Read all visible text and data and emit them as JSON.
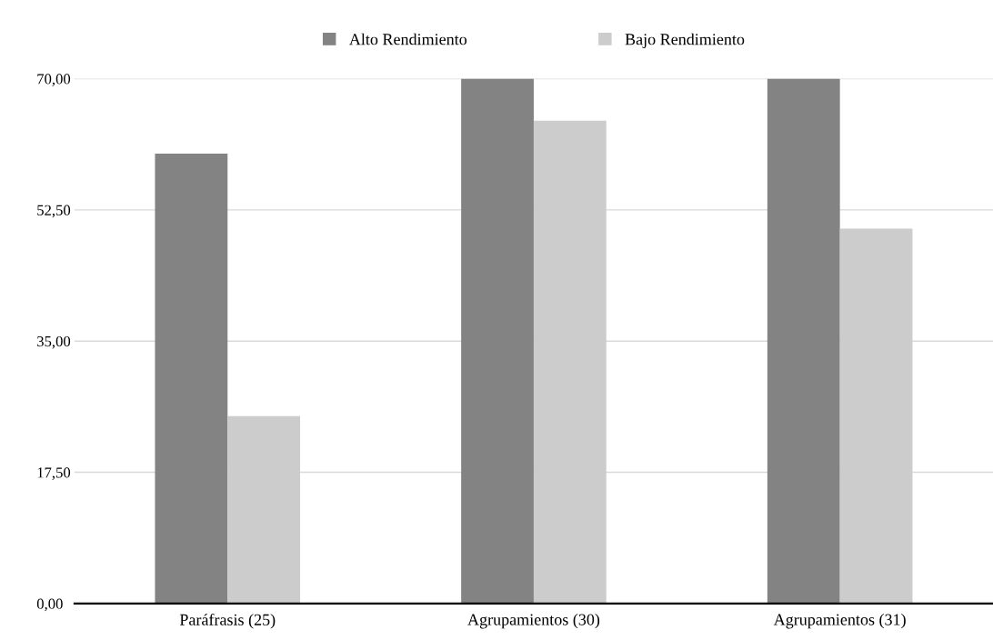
{
  "chart_data": {
    "type": "bar",
    "categories": [
      "Paráfrasis (25)",
      "Agrupamientos (30)",
      "Agrupamientos (31)"
    ],
    "series": [
      {
        "name": "Alto Rendimiento",
        "color": "#828382",
        "values": [
          60,
          70,
          70
        ]
      },
      {
        "name": "Bajo Rendimiento",
        "color": "#cccccc",
        "values": [
          25,
          64.4,
          50
        ]
      }
    ],
    "ylim": [
      0,
      70
    ],
    "yticks": [
      {
        "value": 0,
        "label": "0,00"
      },
      {
        "value": 17.5,
        "label": "17,50"
      },
      {
        "value": 35,
        "label": "35,00"
      },
      {
        "value": 52.5,
        "label": "52,50"
      },
      {
        "value": 70,
        "label": "70,00"
      }
    ],
    "grid": "y",
    "legend": "top"
  }
}
